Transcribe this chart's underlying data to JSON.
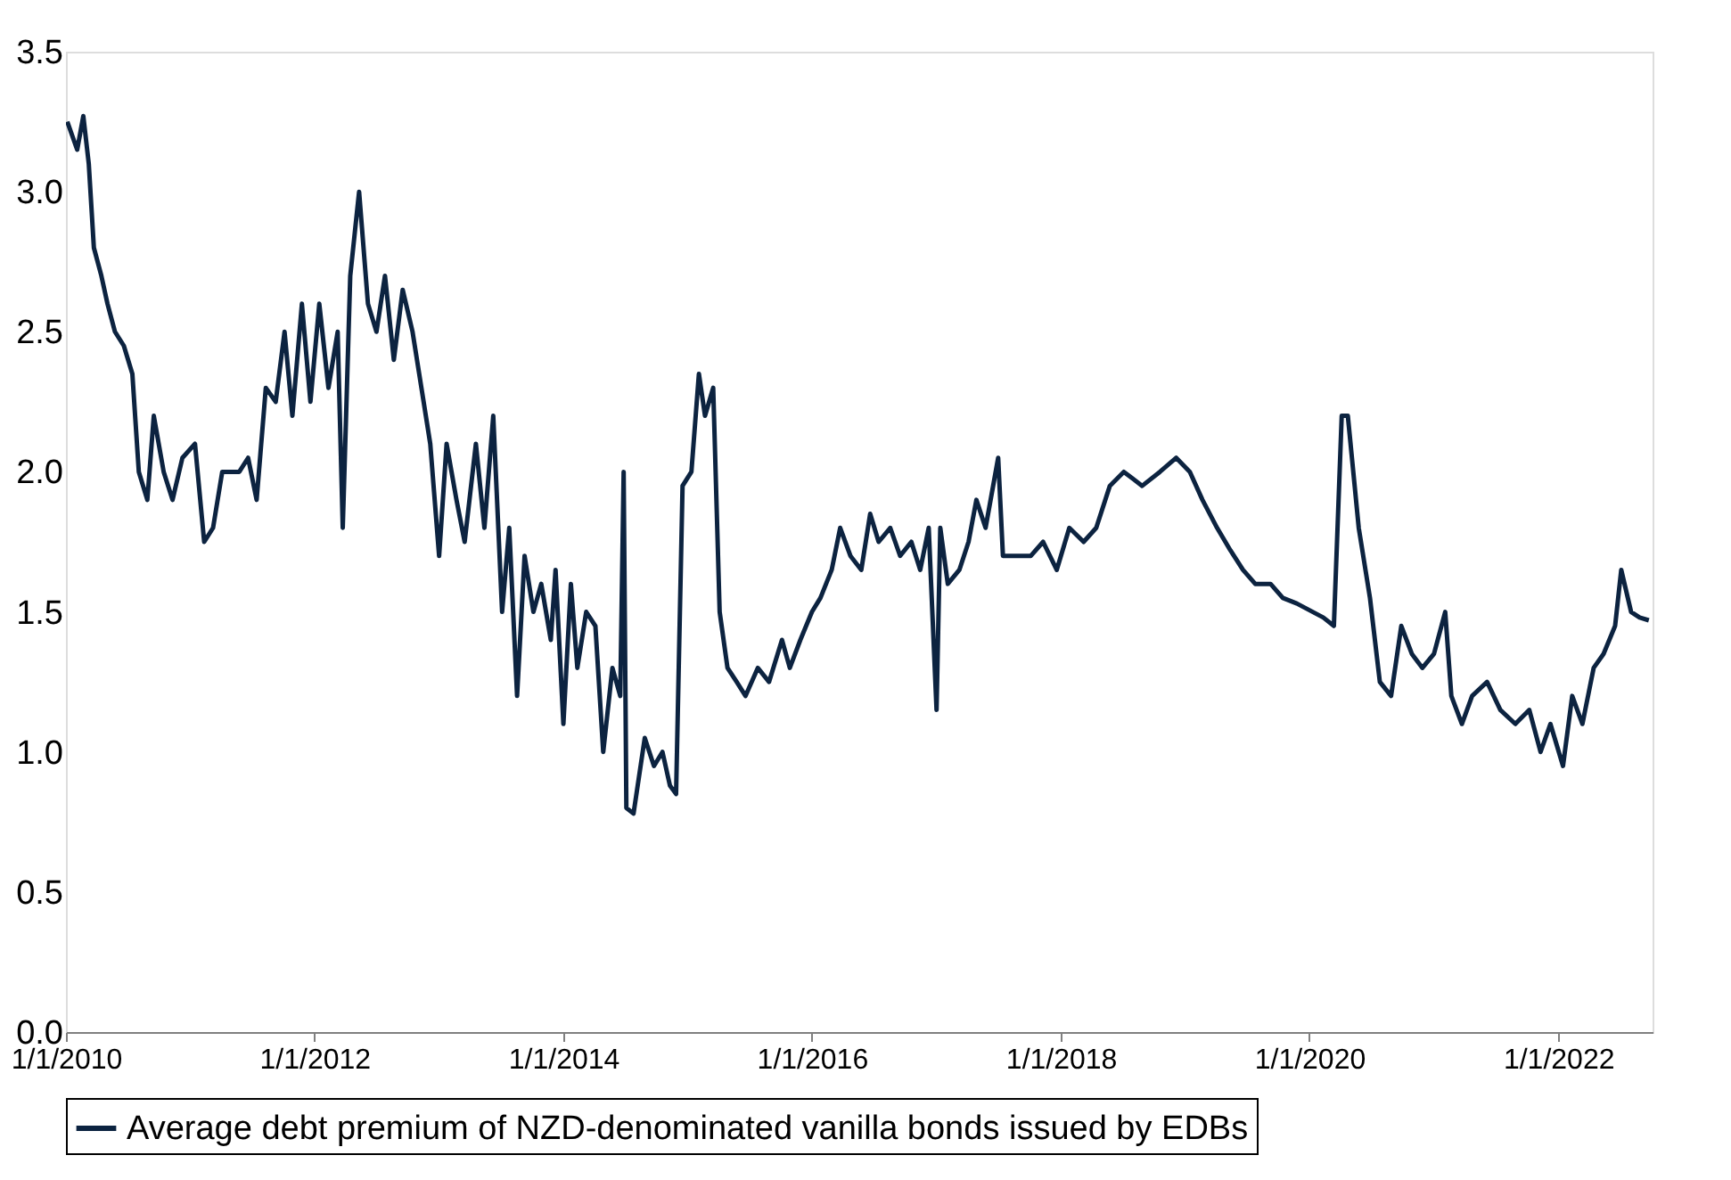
{
  "chart_data": {
    "type": "line",
    "legend": "bottom",
    "grid": false,
    "line_style": "solid",
    "marker": "none",
    "xlim": [
      "2010-01-01",
      "2022-10-05"
    ],
    "xticks": [
      {
        "value": "2010-01-01",
        "label": "1/1/2010"
      },
      {
        "value": "2012-01-01",
        "label": "1/1/2012"
      },
      {
        "value": "2014-01-01",
        "label": "1/1/2014"
      },
      {
        "value": "2016-01-01",
        "label": "1/1/2016"
      },
      {
        "value": "2018-01-01",
        "label": "1/1/2018"
      },
      {
        "value": "2020-01-01",
        "label": "1/1/2020"
      },
      {
        "value": "2022-01-01",
        "label": "1/1/2022"
      }
    ],
    "ylim": [
      0,
      3.5
    ],
    "yticks": [
      {
        "value": 0,
        "label": "0.0"
      },
      {
        "value": 0.5,
        "label": "0.5"
      },
      {
        "value": 1,
        "label": "1.0"
      },
      {
        "value": 1.5,
        "label": "1.5"
      },
      {
        "value": 2,
        "label": "2.0"
      },
      {
        "value": 2.5,
        "label": "2.5"
      },
      {
        "value": 3,
        "label": "3.0"
      },
      {
        "value": 3.5,
        "label": "3.5"
      }
    ],
    "x": [
      "2010-01-05",
      "2010-02-03",
      "2010-02-21",
      "2010-03-09",
      "2010-03-24",
      "2010-04-15",
      "2010-05-03",
      "2010-05-25",
      "2010-06-20",
      "2010-07-15",
      "2010-08-03",
      "2010-08-28",
      "2010-09-16",
      "2010-10-15",
      "2010-11-10",
      "2010-12-09",
      "2011-01-15",
      "2011-02-11",
      "2011-03-09",
      "2011-04-05",
      "2011-05-25",
      "2011-06-20",
      "2011-07-15",
      "2011-08-11",
      "2011-09-09",
      "2011-10-05",
      "2011-10-28",
      "2011-11-25",
      "2011-12-20",
      "2012-01-15",
      "2012-02-11",
      "2012-03-09",
      "2012-03-24",
      "2012-04-15",
      "2012-05-11",
      "2012-06-06",
      "2012-07-01",
      "2012-07-26",
      "2012-08-21",
      "2012-09-16",
      "2012-10-15",
      "2012-11-10",
      "2012-12-06",
      "2013-01-01",
      "2013-01-23",
      "2013-02-21",
      "2013-03-17",
      "2013-04-19",
      "2013-05-14",
      "2013-06-09",
      "2013-07-05",
      "2013-07-26",
      "2013-08-18",
      "2013-09-09",
      "2013-10-05",
      "2013-10-28",
      "2013-11-25",
      "2013-12-09",
      "2014-01-01",
      "2014-01-23",
      "2014-02-11",
      "2014-03-09",
      "2014-04-05",
      "2014-04-28",
      "2014-05-25",
      "2014-06-17",
      "2014-06-27",
      "2014-07-05",
      "2014-07-26",
      "2014-08-28",
      "2014-09-24",
      "2014-10-19",
      "2014-11-10",
      "2014-11-28",
      "2014-12-17",
      "2015-01-12",
      "2015-02-03",
      "2015-02-21",
      "2015-03-17",
      "2015-04-05",
      "2015-04-28",
      "2015-05-25",
      "2015-06-20",
      "2015-07-26",
      "2015-08-28",
      "2015-10-05",
      "2015-10-28",
      "2015-11-28",
      "2016-01-01",
      "2016-01-26",
      "2016-02-28",
      "2016-03-24",
      "2016-04-23",
      "2016-05-25",
      "2016-06-20",
      "2016-07-15",
      "2016-08-18",
      "2016-09-16",
      "2016-10-19",
      "2016-11-14",
      "2016-12-09",
      "2017-01-01",
      "2017-01-12",
      "2017-02-03",
      "2017-03-09",
      "2017-04-05",
      "2017-04-28",
      "2017-05-25",
      "2017-07-01",
      "2017-07-15",
      "2017-08-21",
      "2017-10-05",
      "2017-11-10",
      "2017-12-20",
      "2018-01-26",
      "2018-03-09",
      "2018-04-15",
      "2018-05-25",
      "2018-07-05",
      "2018-08-28",
      "2018-10-19",
      "2018-12-06",
      "2019-01-15",
      "2019-02-21",
      "2019-04-05",
      "2019-05-14",
      "2019-06-20",
      "2019-07-26",
      "2019-09-09",
      "2019-10-15",
      "2019-11-25",
      "2020-02-11",
      "2020-03-13",
      "2020-04-05",
      "2020-04-23",
      "2020-05-25",
      "2020-06-27",
      "2020-07-26",
      "2020-08-28",
      "2020-09-27",
      "2020-10-28",
      "2020-11-28",
      "2021-01-01",
      "2021-02-03",
      "2021-02-21",
      "2021-03-24",
      "2021-04-23",
      "2021-06-06",
      "2021-07-15",
      "2021-08-28",
      "2021-10-08",
      "2021-11-10",
      "2021-12-09",
      "2022-01-15",
      "2022-02-11",
      "2022-03-13",
      "2022-04-15",
      "2022-05-14",
      "2022-06-17",
      "2022-07-05",
      "2022-08-03",
      "2022-08-28",
      "2022-09-24"
    ],
    "series": [
      {
        "name": "Average debt premium of NZD-denominated vanilla bonds issued by EDBs",
        "color": "#0c2340",
        "values": [
          3.25,
          3.15,
          3.27,
          3.1,
          2.8,
          2.7,
          2.6,
          2.5,
          2.45,
          2.35,
          2.0,
          1.9,
          2.2,
          2.0,
          1.9,
          2.05,
          2.1,
          1.75,
          1.8,
          2.0,
          2.0,
          2.05,
          1.9,
          2.3,
          2.25,
          2.5,
          2.2,
          2.6,
          2.25,
          2.6,
          2.3,
          2.5,
          1.8,
          2.7,
          3.0,
          2.6,
          2.5,
          2.7,
          2.4,
          2.65,
          2.5,
          2.3,
          2.1,
          1.7,
          2.1,
          1.9,
          1.75,
          2.1,
          1.8,
          2.2,
          1.5,
          1.8,
          1.2,
          1.7,
          1.5,
          1.6,
          1.4,
          1.65,
          1.1,
          1.6,
          1.3,
          1.5,
          1.45,
          1.0,
          1.3,
          1.2,
          2.0,
          0.8,
          0.78,
          1.05,
          0.95,
          1.0,
          0.88,
          0.85,
          1.95,
          2.0,
          2.35,
          2.2,
          2.3,
          1.5,
          1.3,
          1.25,
          1.2,
          1.3,
          1.25,
          1.4,
          1.3,
          1.4,
          1.5,
          1.55,
          1.65,
          1.8,
          1.7,
          1.65,
          1.85,
          1.75,
          1.8,
          1.7,
          1.75,
          1.65,
          1.8,
          1.15,
          1.8,
          1.6,
          1.65,
          1.75,
          1.9,
          1.8,
          2.05,
          1.7,
          1.7,
          1.7,
          1.75,
          1.65,
          1.8,
          1.75,
          1.8,
          1.95,
          2.0,
          1.95,
          2.0,
          2.05,
          2.0,
          1.9,
          1.8,
          1.72,
          1.65,
          1.6,
          1.6,
          1.55,
          1.53,
          1.48,
          1.45,
          2.2,
          2.2,
          1.8,
          1.55,
          1.25,
          1.2,
          1.45,
          1.35,
          1.3,
          1.35,
          1.5,
          1.2,
          1.1,
          1.2,
          1.25,
          1.15,
          1.1,
          1.15,
          1.0,
          1.1,
          0.95,
          1.2,
          1.1,
          1.3,
          1.35,
          1.45,
          1.65,
          1.5,
          1.48,
          1.47
        ]
      }
    ]
  }
}
